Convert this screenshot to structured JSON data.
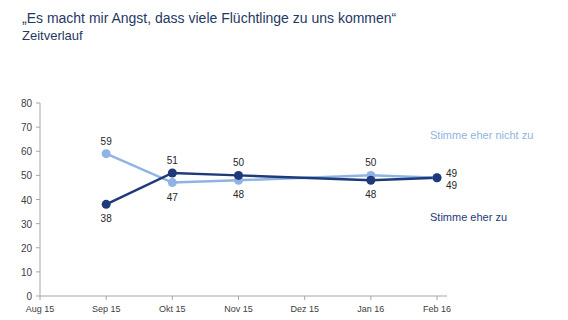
{
  "chart_data": {
    "type": "line",
    "title": "„Es macht mir Angst, dass viele Flüchtlinge zu uns kommen“",
    "subtitle": "Zeitverlauf",
    "xticks": [
      "Aug 15",
      "Sep 15",
      "Okt 15",
      "Nov 15",
      "Dez 15",
      "Jan 16",
      "Feb 16"
    ],
    "x": [
      "Sep 15",
      "Okt 15",
      "Nov 15",
      "Jan 16",
      "Feb 16"
    ],
    "series": [
      {
        "name": "Stimme eher nicht zu",
        "color": "#8fb4e3",
        "values": [
          59,
          47,
          48,
          50,
          49
        ],
        "marker": "circle"
      },
      {
        "name": "Stimme eher zu",
        "color": "#1f3a7a",
        "values": [
          38,
          51,
          50,
          48,
          49
        ],
        "marker": "circle"
      }
    ],
    "ylim": [
      0,
      80
    ],
    "yticks": [
      0,
      10,
      20,
      30,
      40,
      50,
      60,
      70,
      80
    ],
    "grid": false,
    "data_labels": true,
    "legend": "right"
  }
}
